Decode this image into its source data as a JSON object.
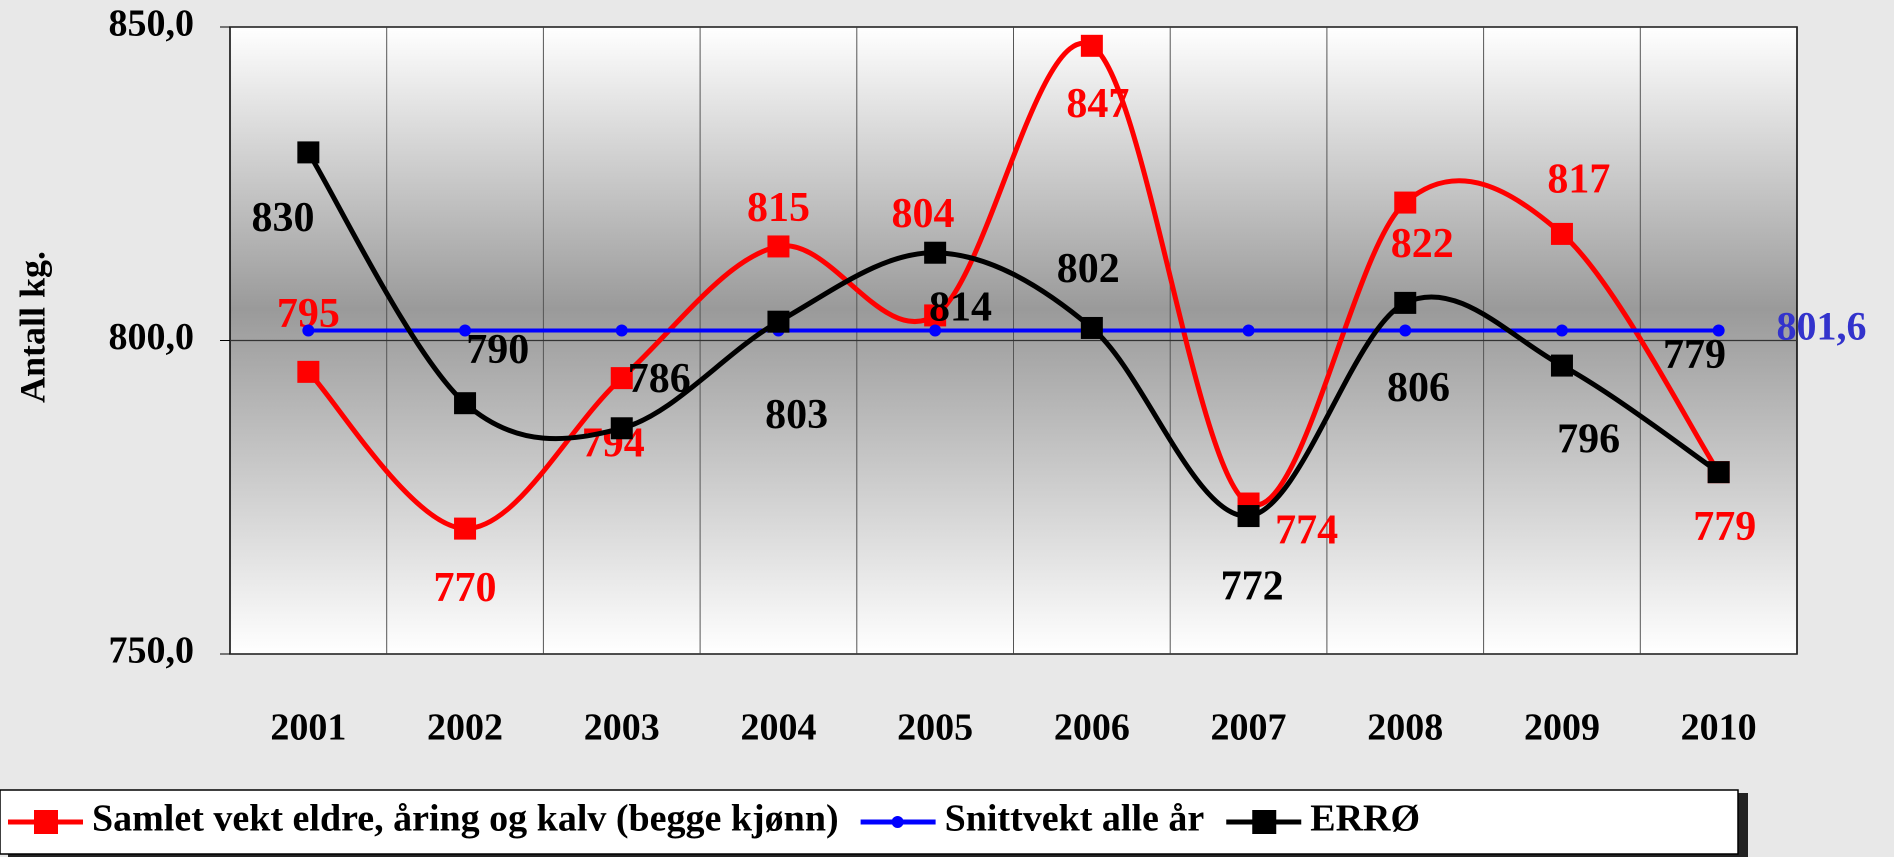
{
  "chart_data": {
    "type": "line",
    "y_label": "Antall kg.",
    "categories": [
      "2001",
      "2002",
      "2003",
      "2004",
      "2005",
      "2006",
      "2007",
      "2008",
      "2009",
      "2010"
    ],
    "series": [
      {
        "name": "Samlet vekt eldre, åring og kalv (begge kjønn)",
        "color": "#ff0000",
        "marker": "square",
        "values": [
          795,
          770,
          794,
          815,
          804,
          847,
          774,
          822,
          817,
          779
        ]
      },
      {
        "name": "Snittvekt alle år",
        "color": "#0000ff",
        "marker": "circle",
        "values": [
          801.6,
          801.6,
          801.6,
          801.6,
          801.6,
          801.6,
          801.6,
          801.6,
          801.6,
          801.6
        ],
        "value_labels": [
          null,
          null,
          null,
          null,
          null,
          null,
          null,
          null,
          null,
          "801,6"
        ]
      },
      {
        "name": "ERRØ",
        "color": "#000000",
        "marker": "square",
        "values": [
          830,
          790,
          786,
          803,
          814,
          802,
          772,
          806,
          796,
          779
        ]
      }
    ],
    "ylim": [
      750,
      850
    ],
    "yticks": [
      {
        "value": 750,
        "label": "750,0"
      },
      {
        "value": 800,
        "label": "800,0"
      },
      {
        "value": 850,
        "label": "850,0"
      }
    ],
    "grid": true,
    "legend": "bottom"
  }
}
